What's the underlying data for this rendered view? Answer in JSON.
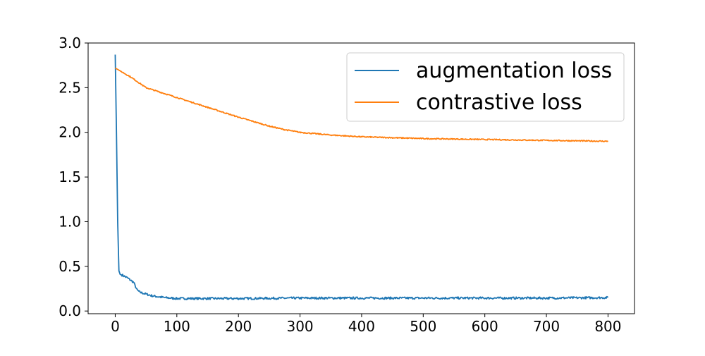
{
  "chart_data": {
    "type": "line",
    "xlim": [
      -44,
      843
    ],
    "ylim": [
      -0.03,
      3.0
    ],
    "x_ticks": [
      0,
      100,
      200,
      300,
      400,
      500,
      600,
      700,
      800
    ],
    "x_tick_labels": [
      "0",
      "100",
      "200",
      "300",
      "400",
      "500",
      "600",
      "700",
      "800"
    ],
    "y_ticks": [
      0.0,
      0.5,
      1.0,
      1.5,
      2.0,
      2.5,
      3.0
    ],
    "y_tick_labels": [
      "0.0",
      "0.5",
      "1.0",
      "1.5",
      "2.0",
      "2.5",
      "3.0"
    ],
    "grid": false,
    "legend_position": "top-right",
    "series": [
      {
        "name": "augmentation loss",
        "color": "#1f77b4",
        "x": [
          0,
          2,
          4,
          6,
          8,
          12,
          20,
          30,
          35,
          40,
          60,
          80,
          100,
          150,
          200,
          300,
          400,
          500,
          600,
          700,
          800
        ],
        "y": [
          2.87,
          2.0,
          1.0,
          0.45,
          0.41,
          0.4,
          0.37,
          0.32,
          0.24,
          0.21,
          0.17,
          0.15,
          0.14,
          0.14,
          0.14,
          0.145,
          0.145,
          0.145,
          0.145,
          0.145,
          0.15
        ],
        "noise": 0.012
      },
      {
        "name": "contrastive loss",
        "color": "#ff7f0e",
        "x": [
          0,
          25,
          50,
          100,
          150,
          200,
          250,
          275,
          300,
          350,
          400,
          500,
          600,
          700,
          800
        ],
        "y": [
          2.72,
          2.62,
          2.5,
          2.39,
          2.28,
          2.17,
          2.07,
          2.03,
          2.0,
          1.97,
          1.95,
          1.93,
          1.92,
          1.91,
          1.9
        ],
        "noise": 0.006
      }
    ]
  }
}
